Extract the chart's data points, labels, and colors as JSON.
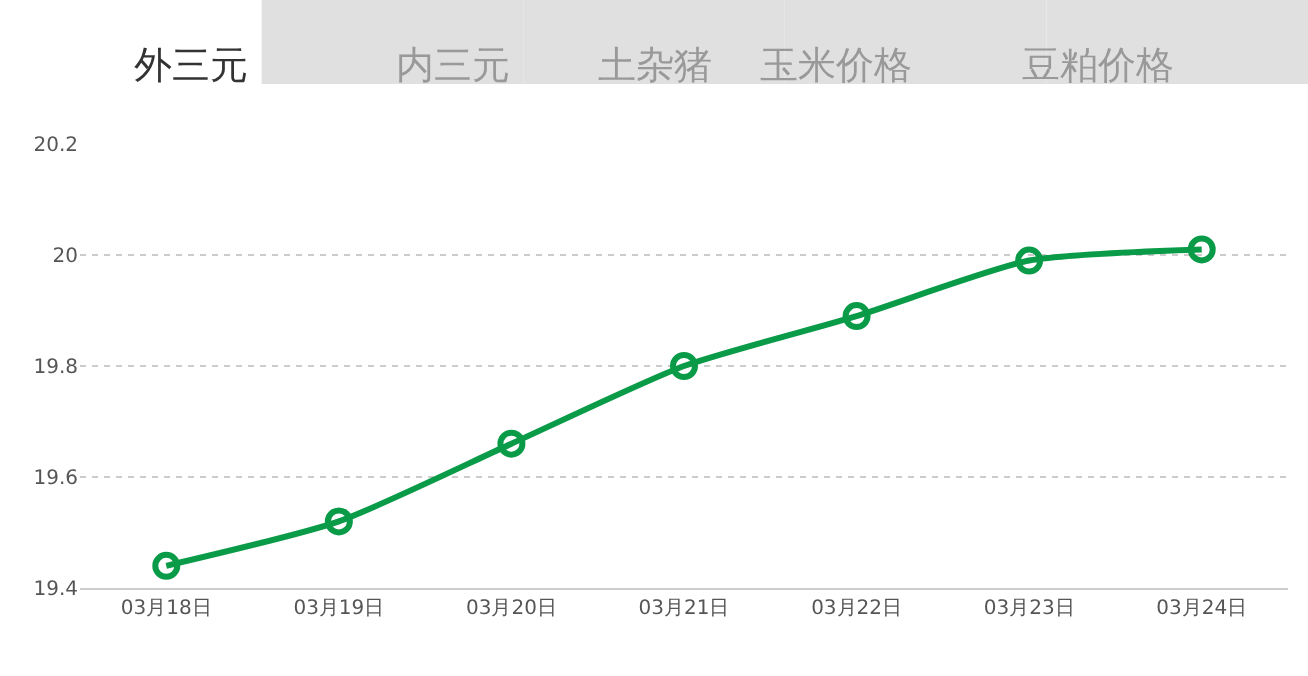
{
  "chart_data": {
    "type": "line",
    "annotations": [
      "外三元",
      "内三元",
      "土杂猪",
      "玉米价格",
      "豆粕价格"
    ],
    "categories": [
      "03月18日",
      "03月19日",
      "03月20日",
      "03月21日",
      "03月22日",
      "03月23日",
      "03月24日"
    ],
    "series": [
      {
        "color": "#0a9b48",
        "values": [
          19.44,
          19.52,
          19.66,
          19.8,
          19.89,
          19.99,
          20.01
        ]
      }
    ],
    "ylim": [
      19.4,
      20.2
    ],
    "yticks": [
      19.4,
      19.6,
      19.8,
      20,
      20.2
    ],
    "grid": "y",
    "legend": false,
    "marker": "circle",
    "line_style": "solid"
  }
}
